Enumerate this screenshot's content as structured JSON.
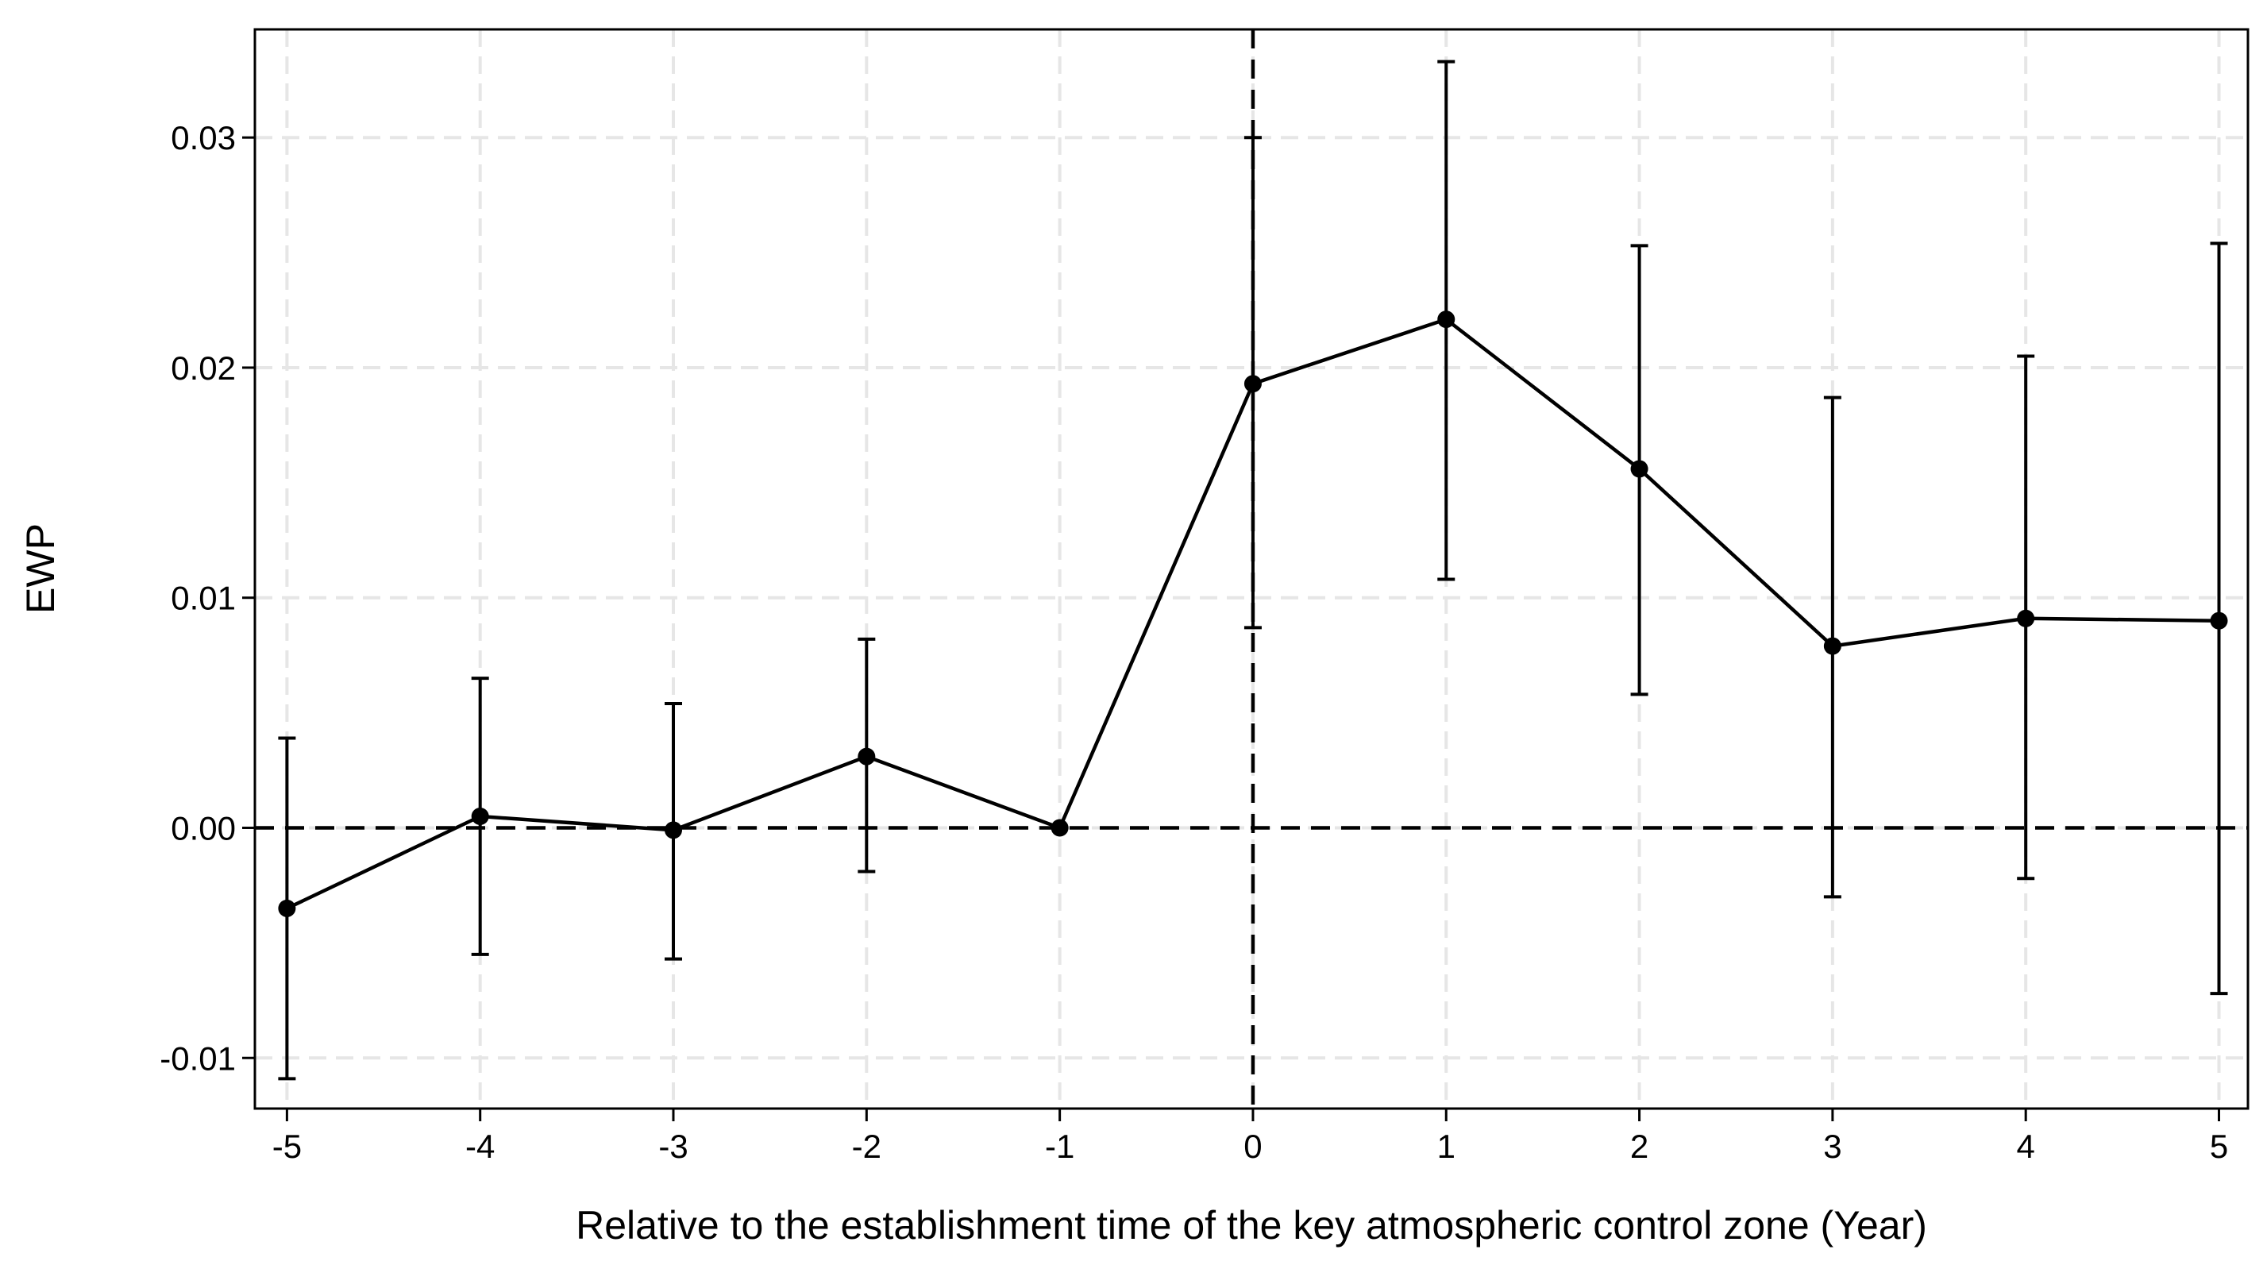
{
  "chart_data": {
    "type": "line",
    "x_label": "Relative to the establishment time of the key atmospheric control zone (Year)",
    "y_label": "EWP",
    "x": [
      -5,
      -4,
      -3,
      -2,
      -1,
      0,
      1,
      2,
      3,
      4,
      5
    ],
    "series": [
      {
        "color": "#000000",
        "values": [
          -0.0035,
          0.0005,
          -0.0001,
          0.0031,
          0,
          0.0193,
          0.0221,
          0.0156,
          0.0079,
          0.0091,
          0.009
        ],
        "lower": [
          -0.0109,
          -0.0055,
          -0.0057,
          -0.0019,
          null,
          0.0087,
          0.0108,
          0.0058,
          -0.003,
          -0.0022,
          -0.0072
        ],
        "upper": [
          0.0039,
          0.0065,
          0.0054,
          0.0082,
          null,
          0.03,
          0.0333,
          0.0253,
          0.0187,
          0.0205,
          0.0254
        ]
      }
    ],
    "xlim": [
      -5.166,
      5.15
    ],
    "ylim": [
      -0.0122,
      0.0347
    ],
    "xticks": [
      -5,
      -4,
      -3,
      -2,
      -1,
      0,
      1,
      2,
      3,
      4,
      5
    ],
    "yticks": [
      -0.01,
      {
        "value": 0,
        "label": "0.00"
      },
      0.01,
      0.02,
      0.03
    ],
    "grid": true,
    "hline": 0,
    "vline": 0
  }
}
